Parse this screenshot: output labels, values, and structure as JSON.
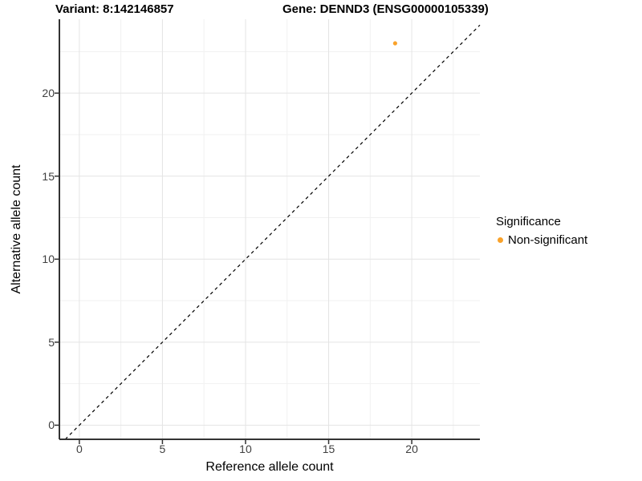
{
  "figure": {
    "background": "#ffffff"
  },
  "chart_data": {
    "type": "scatter",
    "title_left": "Variant: 8:142146857",
    "title_right": "Gene: DENND3 (ENSG00000105339)",
    "xlabel": "Reference allele count",
    "ylabel": "Alternative allele count",
    "xlim": [
      -1.2,
      24.1
    ],
    "ylim": [
      -0.85,
      24.45
    ],
    "x_ticks": [
      0,
      5,
      10,
      15,
      20
    ],
    "y_ticks": [
      0,
      5,
      10,
      15,
      20
    ],
    "x_minor_ticks": [
      2.5,
      7.5,
      12.5,
      17.5,
      22.5
    ],
    "y_minor_ticks": [
      2.5,
      7.5,
      12.5,
      17.5,
      22.5
    ],
    "grid": true,
    "points": [
      {
        "x": 19,
        "y": 23,
        "series": "Non-significant",
        "color": "#F9A22B"
      }
    ],
    "reference_line": {
      "slope": 1,
      "intercept": 0,
      "style": "dashed",
      "color": "#000000"
    },
    "legend": {
      "position": "right",
      "title": "Significance",
      "items": [
        {
          "label": "Non-significant",
          "color": "#F9A22B"
        }
      ]
    }
  },
  "style": {
    "accent_orange": "#F9A22B",
    "axis_line_color": "#333333",
    "tick_color": "#333333",
    "tick_label_color": "#404040",
    "grid_major_color": "#e4e4e4",
    "grid_minor_color": "#f1f1f1"
  }
}
